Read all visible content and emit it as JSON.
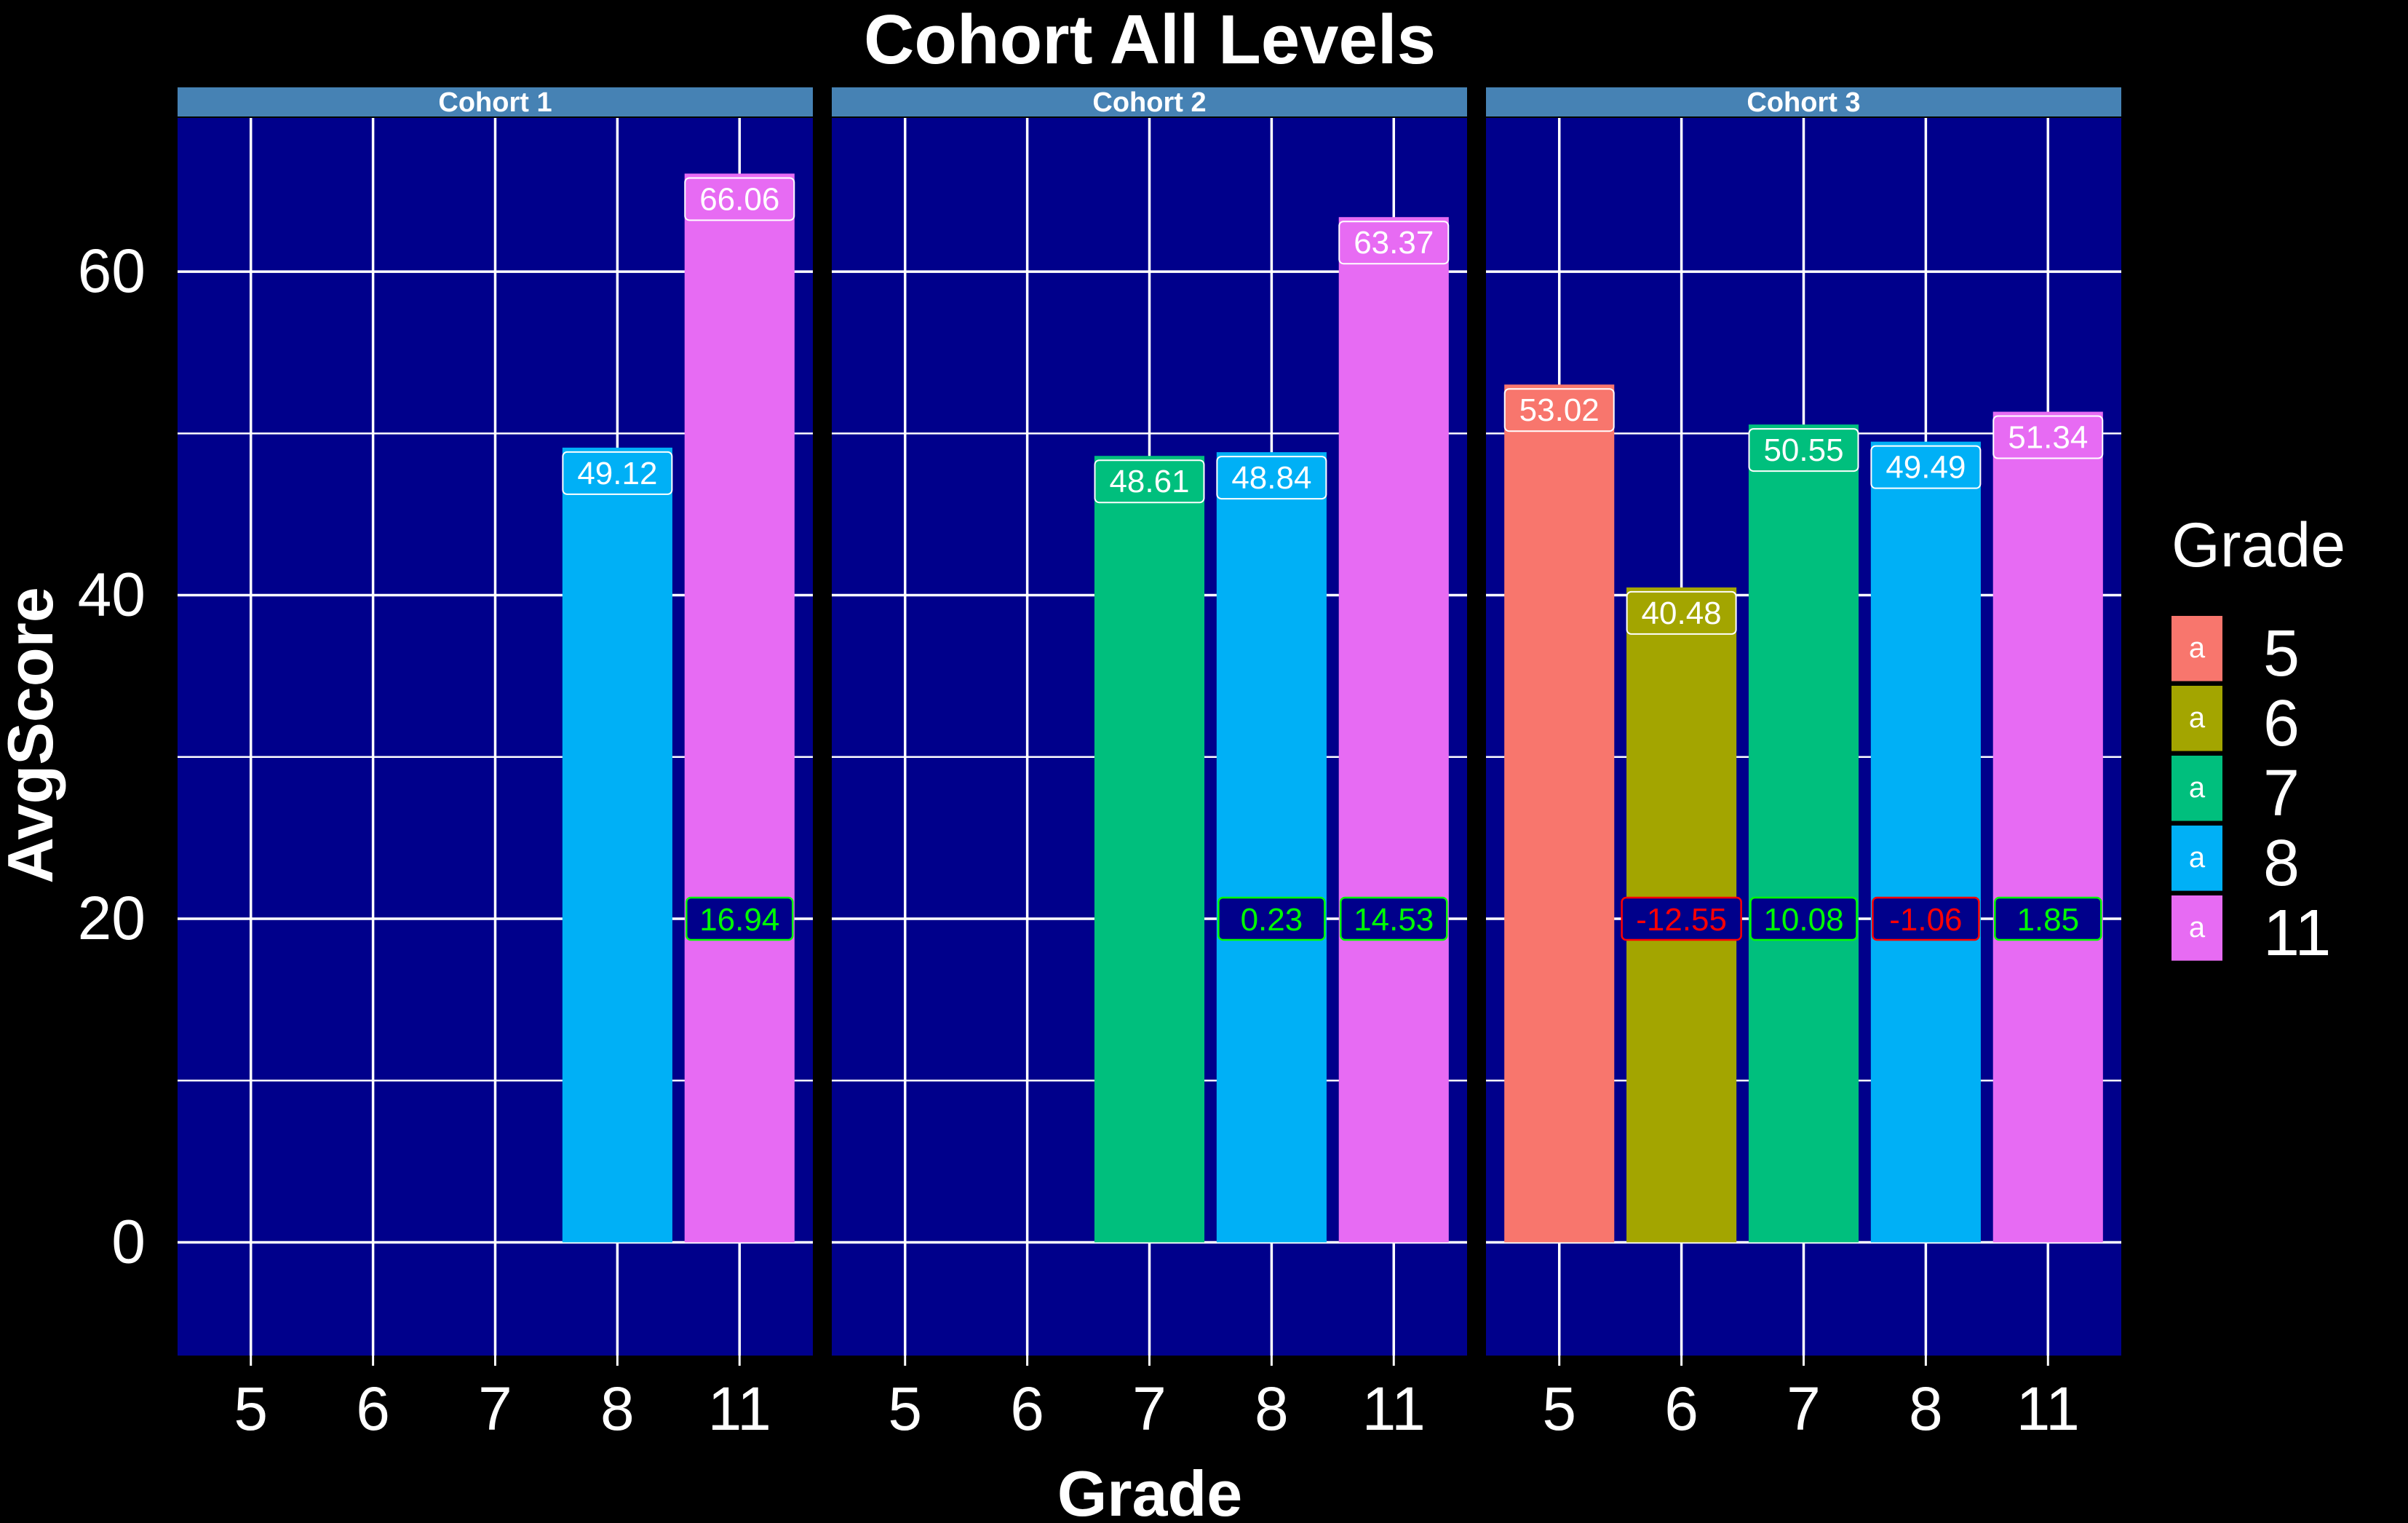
{
  "chart_data": {
    "type": "bar",
    "title": "Cohort All Levels",
    "xlabel": "Grade",
    "ylabel": "AvgScore",
    "ylim": [
      -7,
      69.5
    ],
    "yticks": [
      0,
      20,
      40,
      60
    ],
    "grid": true,
    "legend": {
      "title": "Grade",
      "position": "right",
      "key_glyph": "a",
      "entries": [
        "5",
        "6",
        "7",
        "8",
        "11"
      ]
    },
    "colors": {
      "5": "#F8766D",
      "6": "#A3A500",
      "7": "#00BF7D",
      "8": "#00B0F6",
      "11": "#E76BF3",
      "panel_background": "#00008B",
      "strip_background": "#4682B4",
      "positive_change": "#00FF00",
      "negative_change": "#FF0000",
      "page_background": "#000000"
    },
    "categories": [
      "5",
      "6",
      "7",
      "8",
      "11"
    ],
    "panels": [
      {
        "strip": "Cohort 1",
        "bars": [
          {
            "grade": "8",
            "value": 49.12,
            "label": "49.12"
          },
          {
            "grade": "11",
            "value": 66.06,
            "label": "66.06",
            "change": "16.94"
          }
        ]
      },
      {
        "strip": "Cohort 2",
        "bars": [
          {
            "grade": "7",
            "value": 48.61,
            "label": "48.61"
          },
          {
            "grade": "8",
            "value": 48.84,
            "label": "48.84",
            "change": "0.23"
          },
          {
            "grade": "11",
            "value": 63.37,
            "label": "63.37",
            "change": "14.53"
          }
        ]
      },
      {
        "strip": "Cohort 3",
        "bars": [
          {
            "grade": "5",
            "value": 53.02,
            "label": "53.02"
          },
          {
            "grade": "6",
            "value": 40.48,
            "label": "40.48",
            "change": "-12.55"
          },
          {
            "grade": "7",
            "value": 50.55,
            "label": "50.55",
            "change": "10.08"
          },
          {
            "grade": "8",
            "value": 49.49,
            "label": "49.49",
            "change": "-1.06"
          },
          {
            "grade": "11",
            "value": 51.34,
            "label": "51.34",
            "change": "1.85"
          }
        ]
      }
    ],
    "change_label_y": 20
  }
}
